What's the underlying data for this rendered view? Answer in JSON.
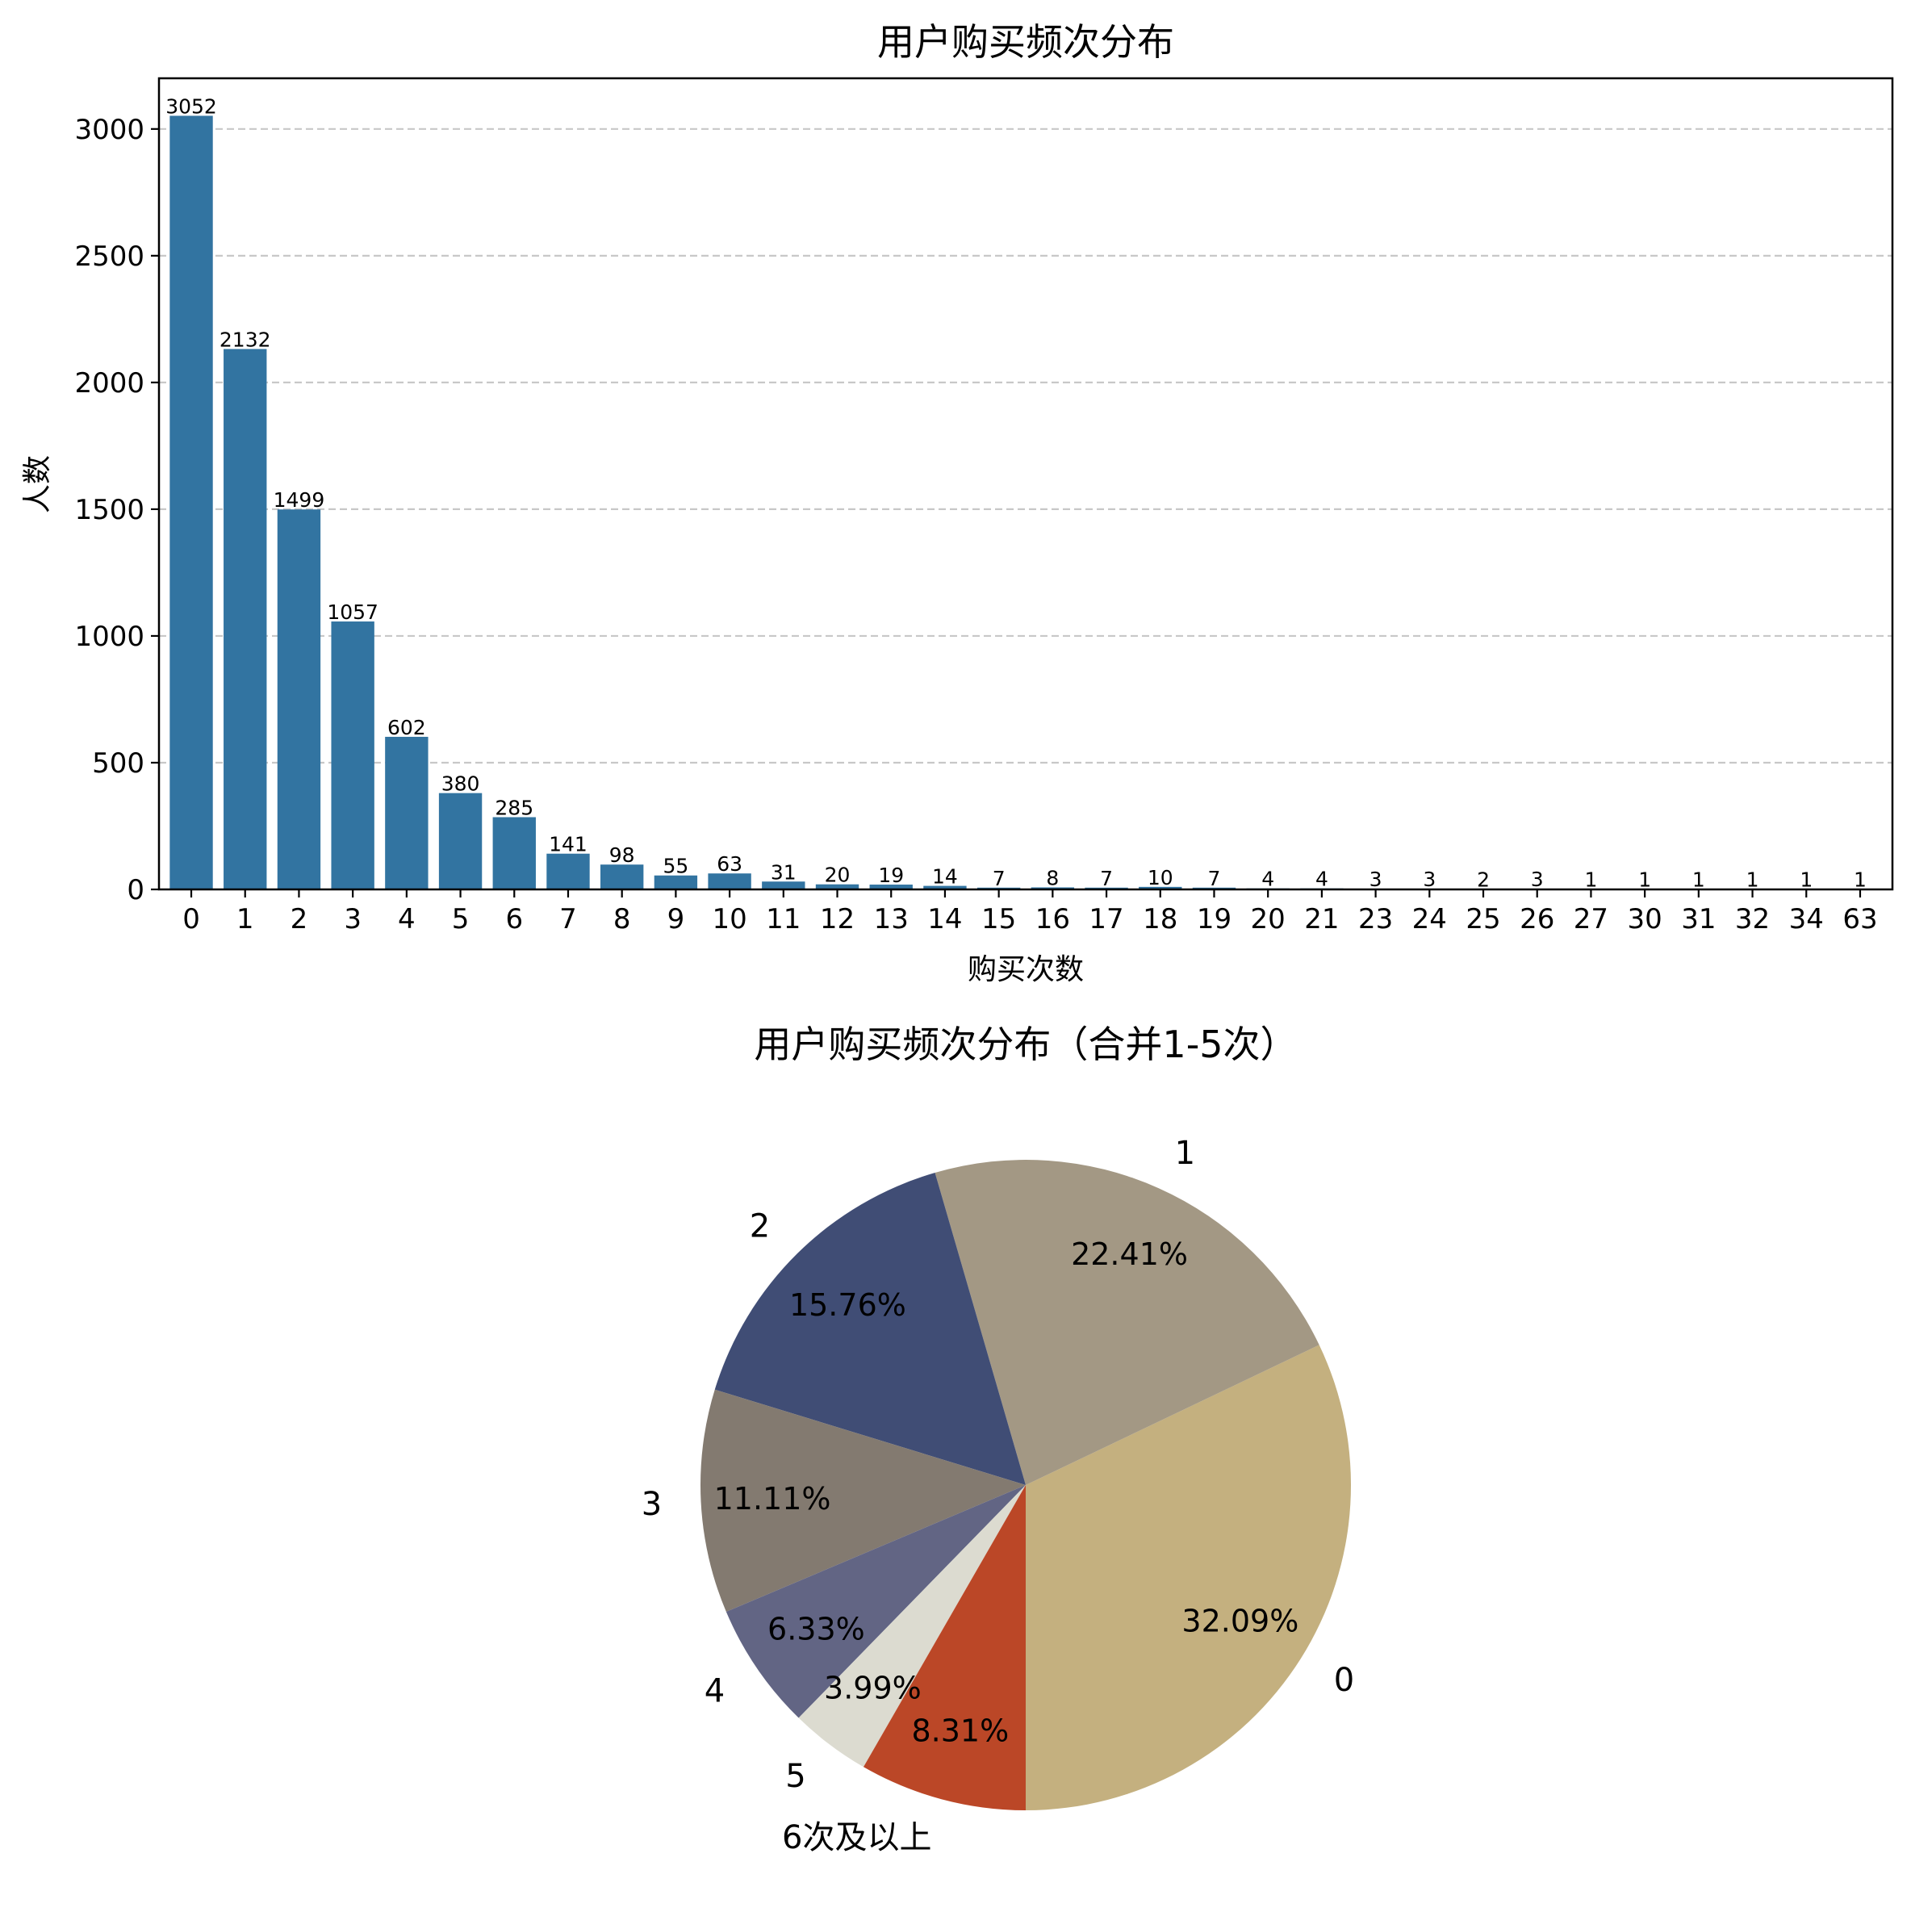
{
  "chart_data": [
    {
      "type": "bar",
      "title": "用户购买频次分布",
      "xlabel": "购买次数",
      "ylabel": "人数",
      "categories": [
        "0",
        "1",
        "2",
        "3",
        "4",
        "5",
        "6",
        "7",
        "8",
        "9",
        "10",
        "11",
        "12",
        "13",
        "14",
        "15",
        "16",
        "17",
        "18",
        "19",
        "20",
        "21",
        "23",
        "24",
        "25",
        "26",
        "27",
        "30",
        "31",
        "32",
        "34",
        "63"
      ],
      "values": [
        3052,
        2132,
        1499,
        1057,
        602,
        380,
        285,
        141,
        98,
        55,
        63,
        31,
        20,
        19,
        14,
        7,
        8,
        7,
        10,
        7,
        4,
        4,
        3,
        3,
        2,
        3,
        1,
        1,
        1,
        1,
        1,
        1
      ],
      "data_labels": [
        "3052",
        "2132",
        "1499",
        "1057",
        "602",
        "380",
        "285",
        "141",
        "98",
        "55",
        "63",
        "31",
        "20",
        "19",
        "14",
        "7",
        "8",
        "7",
        "10",
        "7",
        "4",
        "4",
        "3",
        "3",
        "2",
        "3",
        "1",
        "1",
        "1",
        "1",
        "1",
        "1"
      ],
      "yticks": [
        "0",
        "500",
        "1000",
        "1500",
        "2000",
        "2500",
        "3000"
      ],
      "ylim": [
        0,
        3200
      ],
      "grid": "y-dashed",
      "color": "#3274a1"
    },
    {
      "type": "pie",
      "title": "用户购买频次分布（合并1-5次）",
      "slices": [
        {
          "label": "0",
          "value": 32.09,
          "pct_label": "32.09%",
          "color": "#c4b07f"
        },
        {
          "label": "1",
          "value": 22.41,
          "pct_label": "22.41%",
          "color": "#a39884"
        },
        {
          "label": "2",
          "value": 15.76,
          "pct_label": "15.76%",
          "color": "#404d75"
        },
        {
          "label": "3",
          "value": 11.11,
          "pct_label": "11.11%",
          "color": "#837a70"
        },
        {
          "label": "4",
          "value": 6.33,
          "pct_label": "6.33%",
          "color": "#626584"
        },
        {
          "label": "5",
          "value": 3.99,
          "pct_label": "3.99%",
          "color": "#dcdbd0"
        },
        {
          "label": "6次及以上",
          "value": 8.31,
          "pct_label": "8.31%",
          "color": "#bb4727"
        }
      ]
    }
  ]
}
